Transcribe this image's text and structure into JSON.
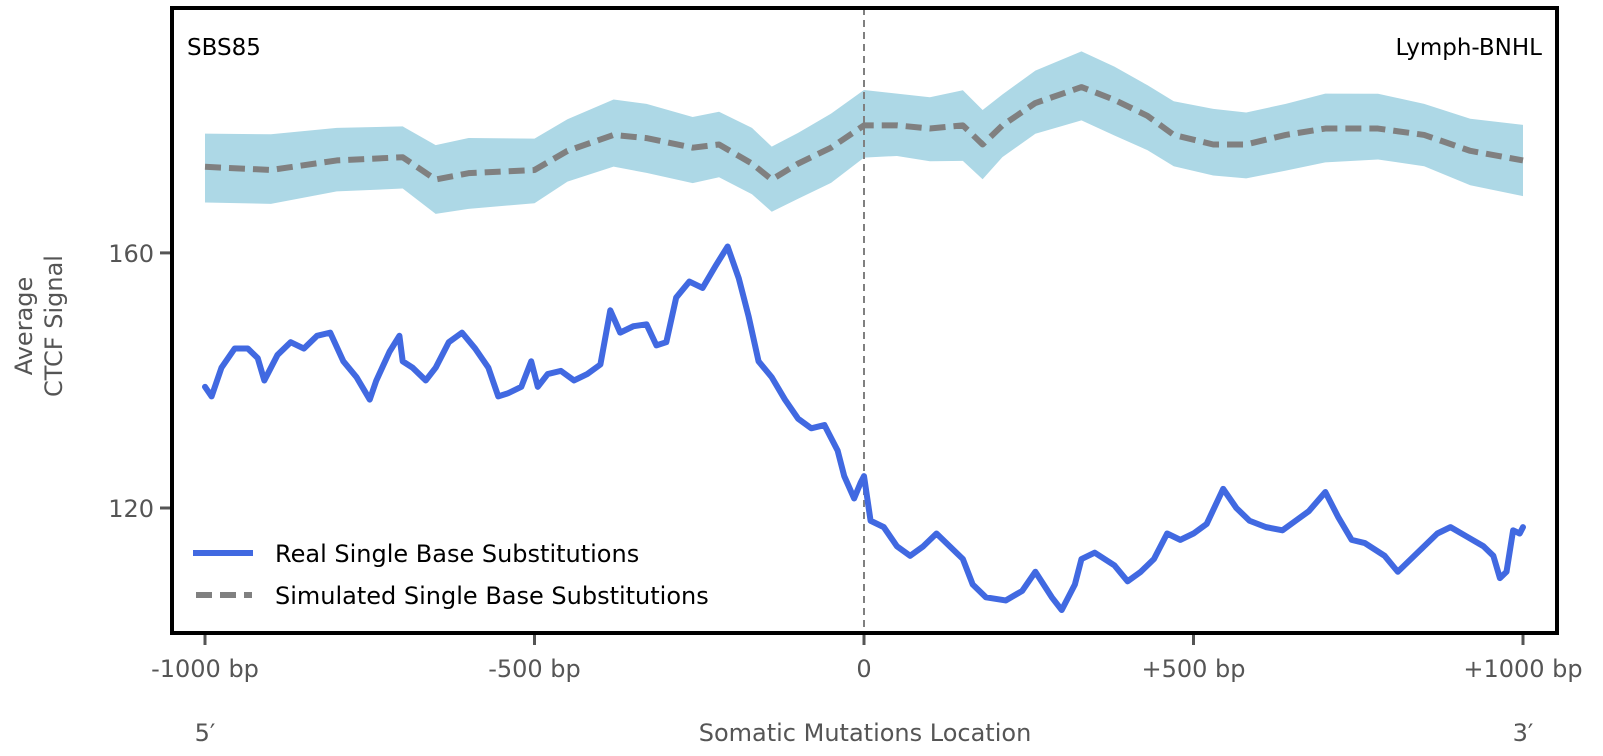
{
  "chart_data": {
    "type": "line",
    "title": "",
    "annotations": {
      "left": "SBS85",
      "right": "Lymph-BNHL"
    },
    "xlabel": "Somatic Mutations Location",
    "ylabel_lines": [
      "Average",
      "CTCF Signal"
    ],
    "x_end_labels": {
      "left": "5′",
      "right": "3′"
    },
    "xlim": [
      -1050,
      1050
    ],
    "ylim": [
      100.4,
      198.4
    ],
    "xticks": [
      {
        "value": -1000,
        "label": "-1000 bp"
      },
      {
        "value": -500,
        "label": "-500 bp"
      },
      {
        "value": 0,
        "label": "0"
      },
      {
        "value": 500,
        "label": "+500 bp"
      },
      {
        "value": 1000,
        "label": "+1000 bp"
      }
    ],
    "yticks": [
      {
        "value": 120,
        "label": "120"
      },
      {
        "value": 160,
        "label": "160"
      }
    ],
    "grid": false,
    "vline": {
      "x": 0,
      "style": "dashed",
      "color": "#808080"
    },
    "legend": {
      "placement": "bottom-left"
    },
    "series": [
      {
        "name": "Real Single Base Substitutions",
        "style": "solid",
        "color": "#4169E1",
        "x": [
          -1000,
          -990,
          -975,
          -955,
          -935,
          -920,
          -910,
          -890,
          -870,
          -850,
          -830,
          -810,
          -790,
          -770,
          -750,
          -740,
          -720,
          -705,
          -700,
          -685,
          -665,
          -650,
          -630,
          -610,
          -590,
          -570,
          -555,
          -540,
          -520,
          -505,
          -495,
          -480,
          -460,
          -440,
          -420,
          -400,
          -385,
          -370,
          -350,
          -330,
          -315,
          -300,
          -285,
          -265,
          -245,
          -225,
          -207,
          -190,
          -175,
          -160,
          -140,
          -120,
          -100,
          -80,
          -60,
          -50,
          -40,
          -30,
          -15,
          -5,
          0,
          10,
          30,
          50,
          70,
          90,
          110,
          130,
          150,
          165,
          185,
          215,
          240,
          260,
          285,
          300,
          320,
          330,
          350,
          380,
          400,
          420,
          440,
          460,
          480,
          500,
          520,
          545,
          565,
          585,
          610,
          635,
          655,
          675,
          700,
          720,
          740,
          760,
          790,
          810,
          830,
          850,
          870,
          890,
          915,
          940,
          955,
          965,
          975,
          985,
          995,
          1000
        ],
        "y": [
          139,
          137.5,
          142,
          145,
          145,
          143.5,
          140,
          144,
          146,
          145,
          147,
          147.5,
          143,
          140.5,
          137,
          140,
          144.5,
          147,
          143,
          142,
          140,
          142,
          146,
          147.5,
          145,
          142,
          137.5,
          138,
          139,
          143,
          139,
          141,
          141.5,
          140,
          141,
          142.5,
          151,
          147.5,
          148.5,
          148.8,
          145.5,
          146,
          153,
          155.5,
          154.5,
          158,
          161,
          156,
          150,
          143,
          140.5,
          137,
          134,
          132.5,
          133,
          131,
          129,
          125,
          121.5,
          124,
          125,
          118,
          117,
          114,
          112.5,
          114,
          116,
          114,
          112,
          108,
          106,
          105.5,
          107,
          110,
          106,
          104,
          108,
          112,
          113,
          111,
          108.5,
          110,
          112,
          116,
          115,
          116,
          117.5,
          123,
          120,
          118,
          117,
          116.5,
          118,
          119.5,
          122.5,
          118.5,
          115,
          114.5,
          112.5,
          110,
          112,
          114,
          116,
          117,
          115.5,
          114,
          112.5,
          109,
          110,
          116.5,
          116,
          117
        ]
      },
      {
        "name": "Simulated Single Base Substitutions",
        "style": "dashed",
        "color": "#808080",
        "band_color": "#ADD8E6",
        "band_halfwidth": 5.2,
        "x": [
          -1000,
          -900,
          -800,
          -700,
          -650,
          -600,
          -500,
          -450,
          -380,
          -330,
          -260,
          -220,
          -170,
          -140,
          -100,
          -50,
          0,
          50,
          100,
          150,
          180,
          210,
          260,
          330,
          380,
          430,
          470,
          530,
          580,
          640,
          700,
          780,
          850,
          920,
          1000
        ],
        "y": [
          173.5,
          173,
          174.5,
          175,
          171.5,
          172.5,
          173,
          176,
          178.5,
          178,
          176.5,
          177,
          174,
          171.5,
          174,
          176.5,
          180,
          180,
          179.5,
          180,
          177,
          180,
          183.5,
          186,
          184,
          181.5,
          178.5,
          177,
          177,
          178.5,
          179.5,
          179.5,
          178.5,
          176,
          174.5
        ]
      }
    ]
  }
}
